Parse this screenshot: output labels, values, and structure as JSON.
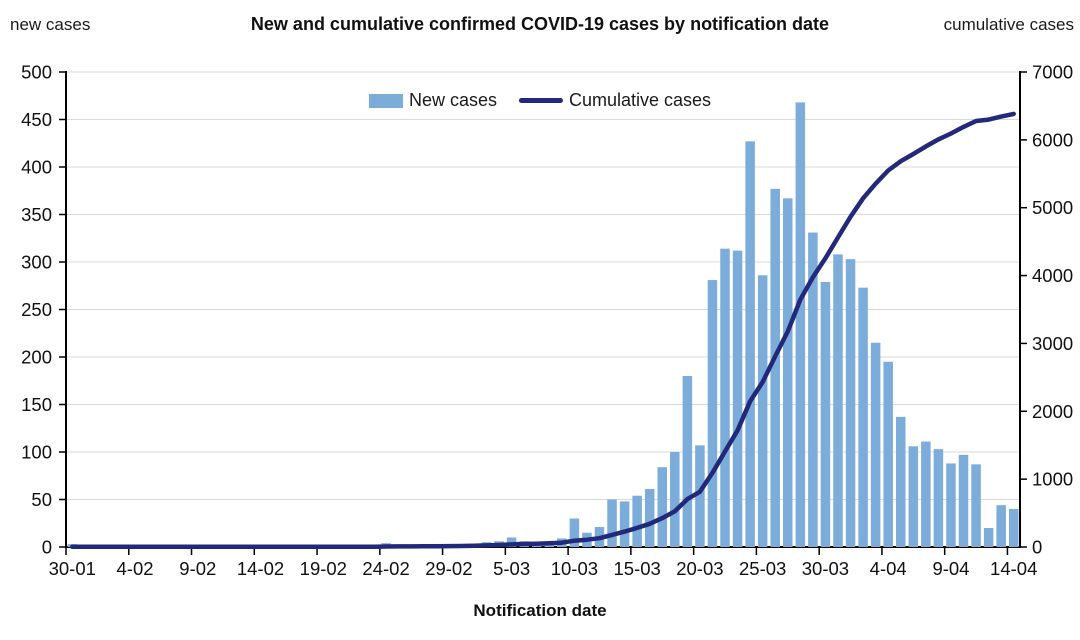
{
  "chart_data": {
    "type": "bar",
    "title": "New and cumulative confirmed COVID-19 cases by notification date",
    "legend_position": "top-center",
    "grid": true,
    "grid_color": "#D9D9D9",
    "axis_color": "#000000",
    "x_axis": {
      "title": "Notification date",
      "tick_labels": [
        "30-01",
        "4-02",
        "9-02",
        "14-02",
        "19-02",
        "24-02",
        "29-02",
        "5-03",
        "10-03",
        "15-03",
        "20-03",
        "25-03",
        "30-03",
        "4-04",
        "9-04",
        "14-04"
      ]
    },
    "y_left": {
      "label": "new cases",
      "min": 0,
      "max": 500,
      "step": 50,
      "tick_labels": [
        "0",
        "50",
        "100",
        "150",
        "200",
        "250",
        "300",
        "350",
        "400",
        "450",
        "500"
      ]
    },
    "y_right": {
      "label": "cumulative cases",
      "min": 0,
      "max": 7000,
      "step": 1000,
      "tick_labels": [
        "0",
        "1000",
        "2000",
        "3000",
        "4000",
        "5000",
        "6000",
        "7000"
      ]
    },
    "days": [
      "30-01",
      "31-01",
      "1-02",
      "2-02",
      "3-02",
      "4-02",
      "5-02",
      "6-02",
      "7-02",
      "8-02",
      "9-02",
      "10-02",
      "11-02",
      "12-02",
      "13-02",
      "14-02",
      "15-02",
      "16-02",
      "17-02",
      "18-02",
      "19-02",
      "20-02",
      "21-02",
      "22-02",
      "23-02",
      "24-02",
      "25-02",
      "26-02",
      "27-02",
      "28-02",
      "29-02",
      "1-03",
      "2-03",
      "3-03",
      "4-03",
      "5-03",
      "6-03",
      "7-03",
      "8-03",
      "9-03",
      "10-03",
      "11-03",
      "12-03",
      "13-03",
      "14-03",
      "15-03",
      "16-03",
      "17-03",
      "18-03",
      "19-03",
      "20-03",
      "21-03",
      "22-03",
      "23-03",
      "24-03",
      "25-03",
      "26-03",
      "27-03",
      "28-03",
      "29-03",
      "30-03",
      "31-03",
      "1-04",
      "2-04",
      "3-04",
      "4-04",
      "5-04",
      "6-04",
      "7-04",
      "8-04",
      "9-04",
      "10-04",
      "11-04",
      "12-04",
      "13-04",
      "14-04"
    ],
    "series": [
      {
        "name": "New cases",
        "type": "bar",
        "axis": "left",
        "color": "#7BACDA",
        "values": [
          3,
          0,
          0,
          0,
          0,
          0,
          0,
          0,
          0,
          0,
          0,
          0,
          0,
          0,
          0,
          0,
          0,
          0,
          0,
          0,
          0,
          0,
          0,
          0,
          0,
          4,
          2,
          0,
          1,
          1,
          2,
          2,
          3,
          5,
          6,
          10,
          6,
          4,
          5,
          9,
          30,
          15,
          21,
          50,
          48,
          54,
          61,
          84,
          100,
          180,
          107,
          281,
          314,
          312,
          427,
          286,
          377,
          367,
          468,
          331,
          279,
          308,
          303,
          273,
          215,
          195,
          137,
          106,
          111,
          103,
          88,
          97,
          87,
          20,
          44,
          40
        ]
      },
      {
        "name": "Cumulative cases",
        "type": "line",
        "axis": "right",
        "color": "#23297A",
        "values": [
          3,
          3,
          3,
          3,
          3,
          3,
          3,
          3,
          3,
          3,
          3,
          3,
          3,
          3,
          3,
          3,
          3,
          3,
          3,
          3,
          3,
          3,
          3,
          3,
          3,
          7,
          9,
          9,
          10,
          11,
          13,
          15,
          18,
          23,
          29,
          39,
          45,
          49,
          54,
          63,
          93,
          108,
          129,
          179,
          227,
          281,
          342,
          426,
          526,
          706,
          813,
          1094,
          1408,
          1720,
          2147,
          2433,
          2810,
          3177,
          3645,
          3976,
          4255,
          4563,
          4866,
          5139,
          5354,
          5549,
          5686,
          5792,
          5903,
          6006,
          6094,
          6191,
          6278,
          6298,
          6342,
          6382
        ]
      }
    ]
  }
}
